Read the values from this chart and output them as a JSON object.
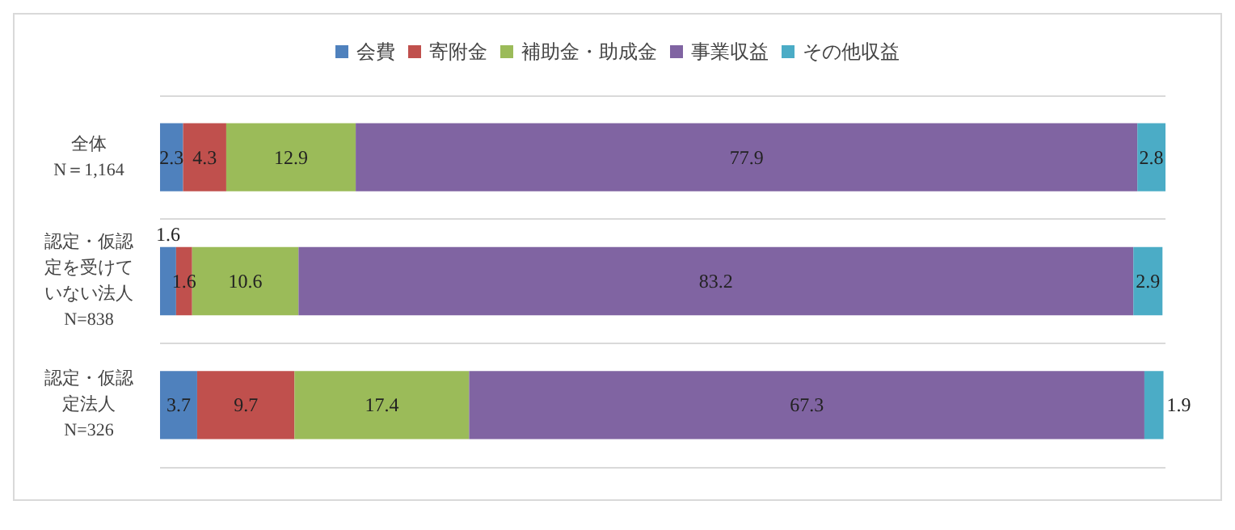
{
  "chart_data": {
    "type": "bar",
    "orientation": "horizontal",
    "stacked": true,
    "categories": [
      "全体\nN＝1,164",
      "認定・仮認定を受けていない法人\nN=838",
      "認定・仮認定法人\nN=326"
    ],
    "series": [
      {
        "name": "会費",
        "color": "#4f81bd",
        "values": [
          2.3,
          1.6,
          3.7
        ]
      },
      {
        "name": "寄附金",
        "color": "#c0504d",
        "values": [
          4.3,
          1.6,
          9.7
        ]
      },
      {
        "name": "補助金・助成金",
        "color": "#9bbb59",
        "values": [
          12.9,
          10.6,
          17.4
        ]
      },
      {
        "name": "事業収益",
        "color": "#8064a2",
        "values": [
          77.9,
          83.2,
          67.3
        ]
      },
      {
        "name": "その他収益",
        "color": "#4bacc6",
        "values": [
          2.8,
          2.9,
          1.9
        ]
      }
    ],
    "data_labels": true,
    "legend": "top",
    "grid": "y",
    "tick_labels": "y"
  }
}
